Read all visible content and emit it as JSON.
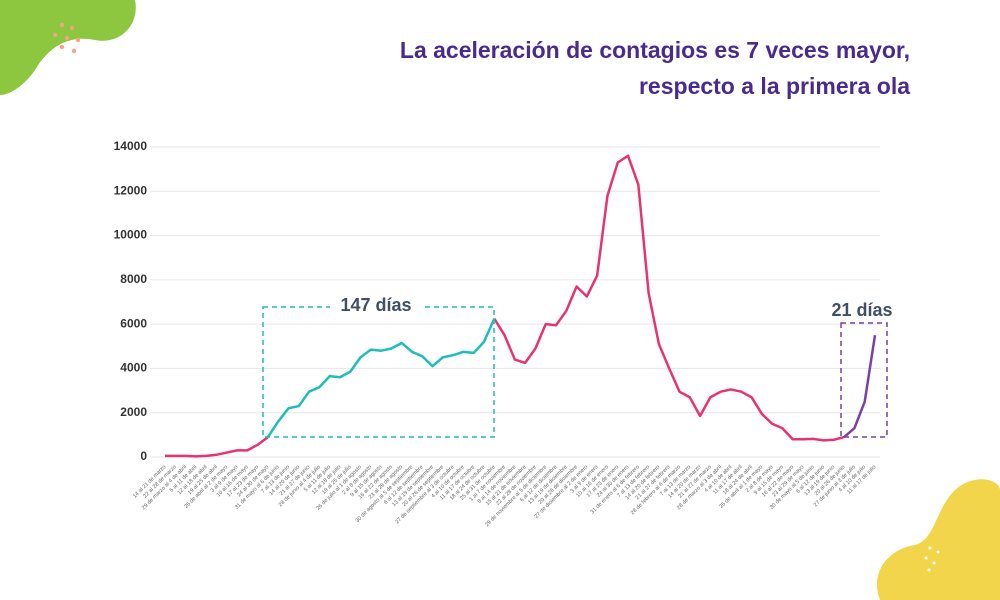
{
  "chart_data": {
    "type": "line",
    "title": [
      "La aceleración de contagios es 7 veces mayor,",
      "respecto a la primera ola"
    ],
    "categories": [
      "14 al 21 de marzo",
      "22 al 28 de marzo",
      "29 de marzo al 4 de abril",
      "5 al 11 de abril",
      "12 al 18 de abril",
      "19 al 25 de abril",
      "26 de abril al 2 de mayo",
      "3 al 9 de mayo",
      "10 al 16 de mayo",
      "17 al 23 de mayo",
      "24 al 30 de mayo",
      "31 de mayo al 6 de junio",
      "7 al 13 de junio",
      "14 al 20 de junio",
      "21 al 27 de junio",
      "28 de junio al 4 de julio",
      "5 al 11 de julio",
      "12 al 18 de julio",
      "19 al 25 de julio",
      "26 de julio al 1 de agosto",
      "2 al 8 de agosto",
      "9 al 15 de agosto",
      "16 al 22 de agosto",
      "23 al 29 de agosto",
      "30 de agosto al 5 de septiembre",
      "6 al 12 de septiembre",
      "13 al 19 de septiembre",
      "20 al 26 de septiembre",
      "27 de septiembre al 3 de octubre",
      "4 al 10 de octubre",
      "11 al 17 de octubre",
      "18 al 24 de octubre",
      "25 al 31 de octubre",
      "1 al 7 de noviembre",
      "8 al 14 de noviembre",
      "15 al 21 de noviembre",
      "22 al 28 de noviembre",
      "29 de noviembre al 5 de diciembre",
      "6 al 12 de diciembre",
      "13 al 19 de diciembre",
      "20 al 26 de diciembre",
      "27 de diciembre al 2 de enero",
      "3 al 9 de enero",
      "10 al 16 de enero",
      "17 al 23 de enero",
      "24 al 30 de enero",
      "31 de enero al 6 de febrero",
      "7 al 13 de febrero",
      "14 al 20 de febrero",
      "21 al 27 de febrero",
      "28 de febrero al 6 de marzo",
      "7 al 13 de marzo",
      "14 al 20 de marzo",
      "21 al 27 de marzo",
      "28 de marzo al 3 de abril",
      "4 al 10 de abril",
      "11 al 17 de abril",
      "18 al 24 de abril",
      "25 de abril al 1 de mayo",
      "2 al 8 de mayo",
      "9 al 15 de mayo",
      "16 al 22 de mayo",
      "23 al 29 de mayo",
      "30 de mayo al 5 de junio",
      "6 al 12 de junio",
      "13 al 19 de junio",
      "20 al 26 de junio",
      "27 de junio al 3 de julio",
      "4 al 10 de julio",
      "11 al 17 de julio"
    ],
    "series": [
      {
        "color": "#e8336e",
        "values": [
          50,
          50,
          50,
          30,
          50,
          100,
          200,
          300,
          300,
          550,
          900,
          null,
          null,
          null,
          null,
          null,
          null,
          null,
          null,
          null,
          null,
          null,
          null,
          null,
          null,
          null,
          null,
          null,
          null,
          null,
          null,
          null,
          6250,
          5500,
          4400,
          4250,
          4900,
          6000,
          5950,
          6600,
          7700,
          7250,
          8200,
          11800,
          13300,
          13600,
          12300,
          7400,
          5100,
          4000,
          2950,
          2700,
          1850,
          2700,
          2950,
          3050,
          2950,
          2700,
          1950,
          1500,
          1300,
          800,
          800,
          820,
          750,
          780,
          900,
          null,
          null,
          null
        ]
      },
      {
        "color": "#1fbcbc",
        "values": [
          null,
          null,
          null,
          null,
          null,
          null,
          null,
          null,
          null,
          null,
          900,
          1600,
          2200,
          2300,
          2950,
          3150,
          3650,
          3600,
          3850,
          4500,
          4850,
          4800,
          4900,
          5150,
          4750,
          4550,
          4100,
          4500,
          4600,
          4750,
          4700,
          5200,
          6250,
          null,
          null,
          null,
          null,
          null,
          null,
          null,
          null,
          null,
          null,
          null,
          null,
          null,
          null,
          null,
          null,
          null,
          null,
          null,
          null,
          null,
          null,
          null,
          null,
          null,
          null,
          null,
          null,
          null,
          null,
          null,
          null,
          null,
          null,
          null,
          null,
          null
        ]
      },
      {
        "color": "#7b3fa8",
        "values": [
          null,
          null,
          null,
          null,
          null,
          null,
          null,
          null,
          null,
          null,
          null,
          null,
          null,
          null,
          null,
          null,
          null,
          null,
          null,
          null,
          null,
          null,
          null,
          null,
          null,
          null,
          null,
          null,
          null,
          null,
          null,
          null,
          null,
          null,
          null,
          null,
          null,
          null,
          null,
          null,
          null,
          null,
          null,
          null,
          null,
          null,
          null,
          null,
          null,
          null,
          null,
          null,
          null,
          null,
          null,
          null,
          null,
          null,
          null,
          null,
          null,
          null,
          null,
          null,
          null,
          null,
          900,
          1300,
          2500,
          5500
        ]
      }
    ],
    "annotations": [
      "147 días",
      "21 días"
    ],
    "ylim": [
      0,
      14000
    ],
    "yticks": [
      0,
      2000,
      4000,
      6000,
      8000,
      10000,
      12000,
      14000
    ],
    "grid": true
  }
}
